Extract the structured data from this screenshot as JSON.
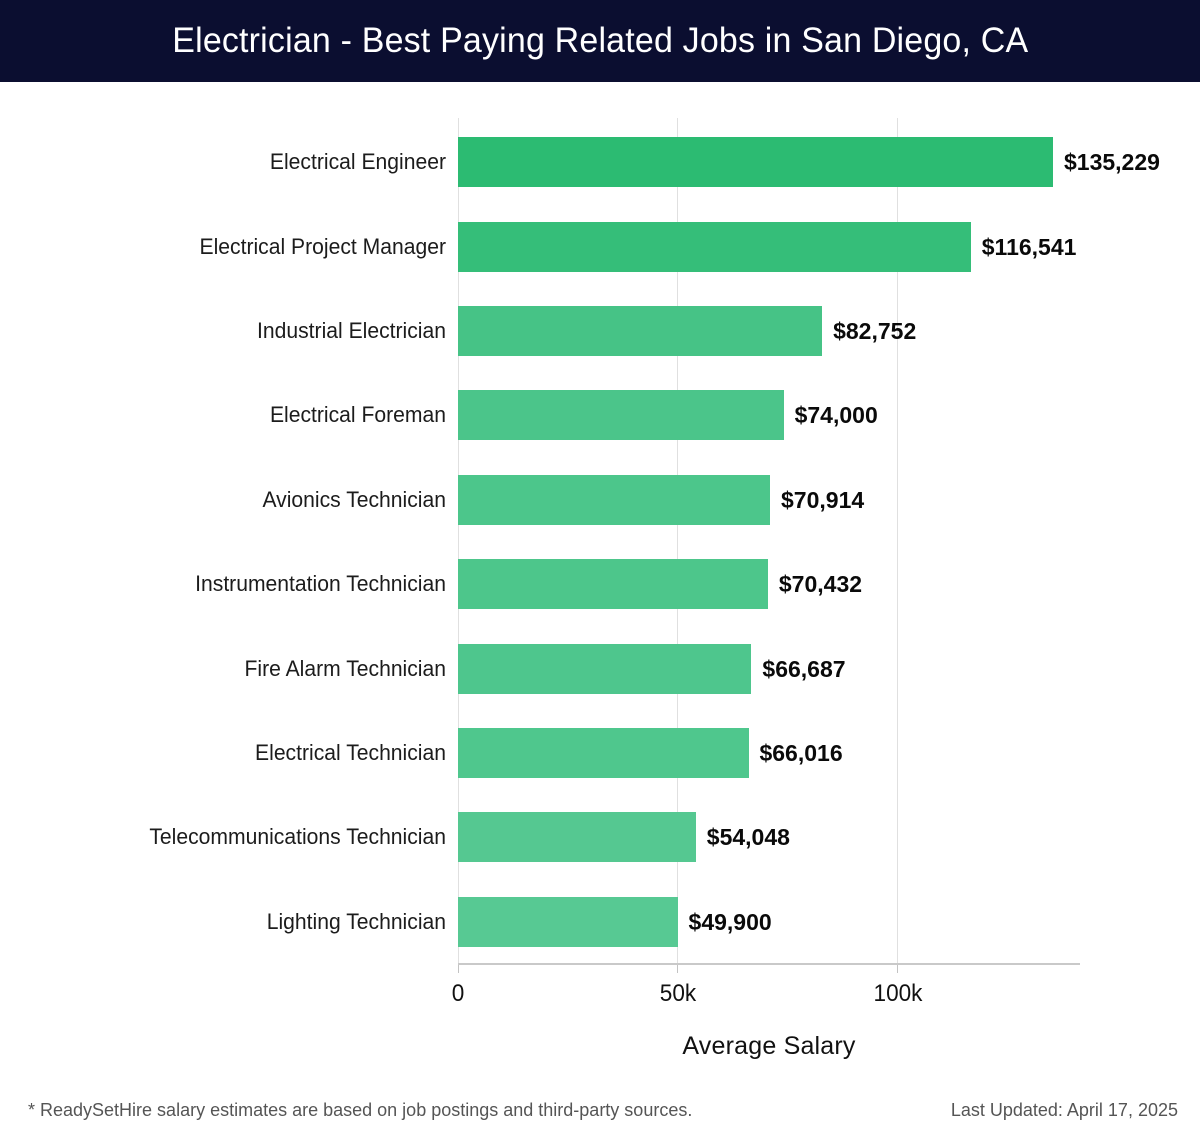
{
  "header": {
    "title": "Electrician - Best Paying Related Jobs in San Diego, CA",
    "bg_color": "#0b0e30",
    "text_color": "#ffffff"
  },
  "chart_data": {
    "type": "bar",
    "orientation": "horizontal",
    "title": "Electrician - Best Paying Related Jobs in San Diego, CA",
    "categories": [
      "Electrical Engineer",
      "Electrical Project Manager",
      "Industrial Electrician",
      "Electrical Foreman",
      "Avionics Technician",
      "Instrumentation Technician",
      "Fire Alarm Technician",
      "Electrical Technician",
      "Telecommunications Technician",
      "Lighting Technician"
    ],
    "values": [
      135229,
      116541,
      82752,
      74000,
      70914,
      70432,
      66687,
      66016,
      54048,
      49900
    ],
    "value_labels": [
      "$135,229",
      "$116,541",
      "$82,752",
      "$74,000",
      "$70,914",
      "$70,432",
      "$66,687",
      "$66,016",
      "$54,048",
      "$49,900"
    ],
    "bar_colors": [
      "#2cbb72",
      "#35be79",
      "#46c386",
      "#4bc58a",
      "#4cc68b",
      "#4dc68b",
      "#4ec68d",
      "#4fc78d",
      "#55c891",
      "#57c993"
    ],
    "xlabel": "Average Salary",
    "x_ticks": [
      {
        "value": 0,
        "label": "0"
      },
      {
        "value": 50000,
        "label": "50k"
      },
      {
        "value": 100000,
        "label": "100k"
      }
    ],
    "xlim": [
      0,
      141364
    ],
    "grid": true,
    "legend": false,
    "grid_color": "#e0e0e0",
    "axis_color": "#c9c9c9"
  },
  "footer": {
    "source_note": "* ReadySetHire salary estimates are based on job postings and third-party sources.",
    "last_updated": "Last Updated: April 17, 2025"
  }
}
